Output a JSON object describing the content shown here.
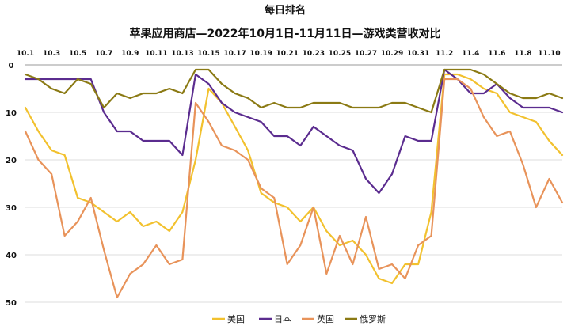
{
  "chart_data": {
    "type": "line",
    "title": "每日排名",
    "subtitle": "苹果应用商店—2022年10月1日-11月11日—游戏类营收对比",
    "xlabel": "",
    "ylabel": "",
    "y_inverted": true,
    "ylim": [
      0,
      50
    ],
    "yticks": [
      0,
      10,
      20,
      30,
      40,
      50
    ],
    "grid": "horizontal",
    "legend_position": "bottom",
    "x": [
      "10.1",
      "10.2",
      "10.3",
      "10.4",
      "10.5",
      "10.6",
      "10.7",
      "10.8",
      "10.9",
      "10.10",
      "10.11",
      "10.12",
      "10.13",
      "10.14",
      "10.15",
      "10.16",
      "10.17",
      "10.18",
      "10.19",
      "10.20",
      "10.21",
      "10.22",
      "10.23",
      "10.24",
      "10.25",
      "10.26",
      "10.27",
      "10.28",
      "10.29",
      "10.30",
      "10.31",
      "11.1",
      "11.2",
      "11.3",
      "11.4",
      "11.5",
      "11.6",
      "11.7",
      "11.8",
      "11.9",
      "11.10",
      "11.11"
    ],
    "x_tick_labels": [
      "10.1",
      "10.3",
      "10.5",
      "10.7",
      "10.9",
      "10.11",
      "10.13",
      "10.15",
      "10.17",
      "10.19",
      "10.21",
      "10.23",
      "10.25",
      "10.27",
      "10.29",
      "10.31",
      "11.2",
      "11.4",
      "11.6",
      "11.8",
      "11.10"
    ],
    "series": [
      {
        "name": "美国",
        "color": "#F2C12E",
        "values": [
          9,
          14,
          18,
          19,
          28,
          29,
          31,
          33,
          31,
          34,
          33,
          35,
          31,
          20,
          5,
          8,
          13,
          18,
          27,
          29,
          30,
          33,
          30,
          35,
          38,
          37,
          40,
          45,
          46,
          42,
          42,
          31,
          2,
          2,
          3,
          5,
          6,
          10,
          11,
          12,
          16,
          19
        ]
      },
      {
        "name": "日本",
        "color": "#5B2C8F",
        "values": [
          3,
          3,
          3,
          3,
          3,
          3,
          10,
          14,
          14,
          16,
          16,
          16,
          19,
          2,
          4,
          8,
          10,
          11,
          12,
          15,
          15,
          17,
          13,
          15,
          17,
          18,
          24,
          27,
          23,
          15,
          16,
          16,
          1,
          3,
          6,
          6,
          4,
          7,
          9,
          9,
          9,
          10
        ]
      },
      {
        "name": "英国",
        "color": "#E8935A",
        "values": [
          14,
          20,
          23,
          36,
          33,
          28,
          39,
          49,
          44,
          42,
          38,
          42,
          41,
          8,
          12,
          17,
          18,
          20,
          26,
          28,
          42,
          38,
          30,
          44,
          36,
          42,
          32,
          43,
          42,
          45,
          38,
          36,
          3,
          3,
          5,
          11,
          15,
          14,
          21,
          30,
          24,
          29
        ]
      },
      {
        "name": "俄罗斯",
        "color": "#8B7A14",
        "values": [
          2,
          3,
          5,
          6,
          3,
          4,
          9,
          6,
          7,
          6,
          6,
          5,
          6,
          1,
          1,
          4,
          6,
          7,
          9,
          8,
          9,
          9,
          8,
          8,
          8,
          9,
          9,
          9,
          8,
          8,
          9,
          10,
          1,
          1,
          1,
          2,
          4,
          6,
          7,
          7,
          6,
          7
        ]
      }
    ]
  }
}
